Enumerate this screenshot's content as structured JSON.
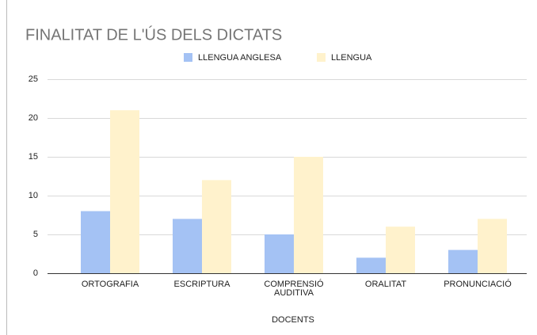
{
  "chart_data": {
    "type": "bar",
    "title": "FINALITAT DE L'ÚS DELS DICTATS",
    "categories": [
      "ORTOGRAFIA",
      "ESCRIPTURA",
      "COMPRENSIÓ AUDITIVA",
      "ORALITAT",
      "PRONUNCIACIÓ"
    ],
    "series": [
      {
        "name": "LLENGUA ANGLESA",
        "color": "#a4c2f4",
        "values": [
          8,
          7,
          5,
          2,
          3
        ]
      },
      {
        "name": "LLENGUA",
        "color": "#fff2cc",
        "values": [
          21,
          12,
          15,
          6,
          7
        ]
      }
    ],
    "x_label": "DOCENTS",
    "ylim": [
      0,
      25
    ],
    "yticks": [
      0,
      5,
      10,
      15,
      20,
      25
    ],
    "grid": true,
    "legend": "top"
  }
}
